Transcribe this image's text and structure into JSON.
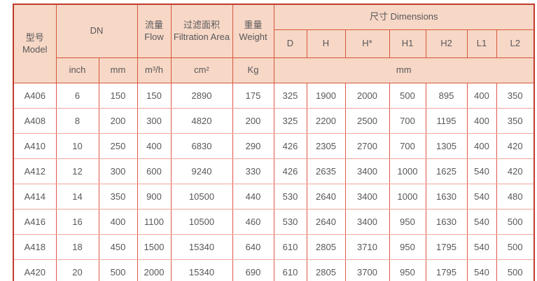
{
  "table": {
    "header": {
      "model_zh": "型号",
      "model_en": "Model",
      "dn": "DN",
      "flow_zh": "流量",
      "flow_en": "Flow",
      "area_zh": "过滤面积",
      "area_en": "Filtration Area",
      "weight_zh": "重量",
      "weight_en": "Weight",
      "dimensions": "尺寸 Dimensions",
      "dim_cols": [
        "D",
        "H",
        "H*",
        "H1",
        "H2",
        "L1",
        "L2"
      ],
      "units": {
        "inch": "inch",
        "mm": "mm",
        "flow": "m³/h",
        "area": "cm²",
        "weight": "Kg",
        "dims_mm": "mm"
      }
    },
    "columns_order": [
      "model",
      "dn_inch",
      "dn_mm",
      "flow_m3h",
      "filtration_area_cm2",
      "weight_kg",
      "D",
      "H",
      "H_star",
      "H1",
      "H2",
      "L1",
      "L2"
    ],
    "rows": [
      {
        "model": "A406",
        "values": [
          "6",
          "150",
          "150",
          "2890",
          "175",
          "325",
          "1900",
          "2000",
          "500",
          "895",
          "400",
          "350"
        ]
      },
      {
        "model": "A408",
        "values": [
          "8",
          "200",
          "300",
          "4820",
          "200",
          "325",
          "2200",
          "2500",
          "700",
          "1195",
          "400",
          "350"
        ]
      },
      {
        "model": "A410",
        "values": [
          "10",
          "250",
          "400",
          "6830",
          "290",
          "426",
          "2305",
          "2700",
          "700",
          "1305",
          "400",
          "420"
        ]
      },
      {
        "model": "A412",
        "values": [
          "12",
          "300",
          "600",
          "9240",
          "330",
          "426",
          "2635",
          "3400",
          "1000",
          "1625",
          "540",
          "420"
        ]
      },
      {
        "model": "A414",
        "values": [
          "14",
          "350",
          "900",
          "10500",
          "440",
          "530",
          "2640",
          "3400",
          "1000",
          "1630",
          "540",
          "480"
        ]
      },
      {
        "model": "A416",
        "values": [
          "16",
          "400",
          "1100",
          "10500",
          "460",
          "530",
          "2640",
          "3400",
          "950",
          "1630",
          "540",
          "500"
        ]
      },
      {
        "model": "A418",
        "values": [
          "18",
          "450",
          "1500",
          "15340",
          "640",
          "610",
          "2805",
          "3710",
          "950",
          "1795",
          "540",
          "500"
        ]
      },
      {
        "model": "A420",
        "values": [
          "20",
          "500",
          "2000",
          "15340",
          "690",
          "610",
          "2805",
          "3700",
          "950",
          "1795",
          "540",
          "500"
        ]
      }
    ],
    "colors": {
      "header_bg": "#f7d7c6",
      "header_border": "#d4593b",
      "outer_border": "#c03b2d",
      "grid_vertical": "#df584a",
      "grid_horizontal": "#f2a79e",
      "text": "#58585a"
    }
  }
}
